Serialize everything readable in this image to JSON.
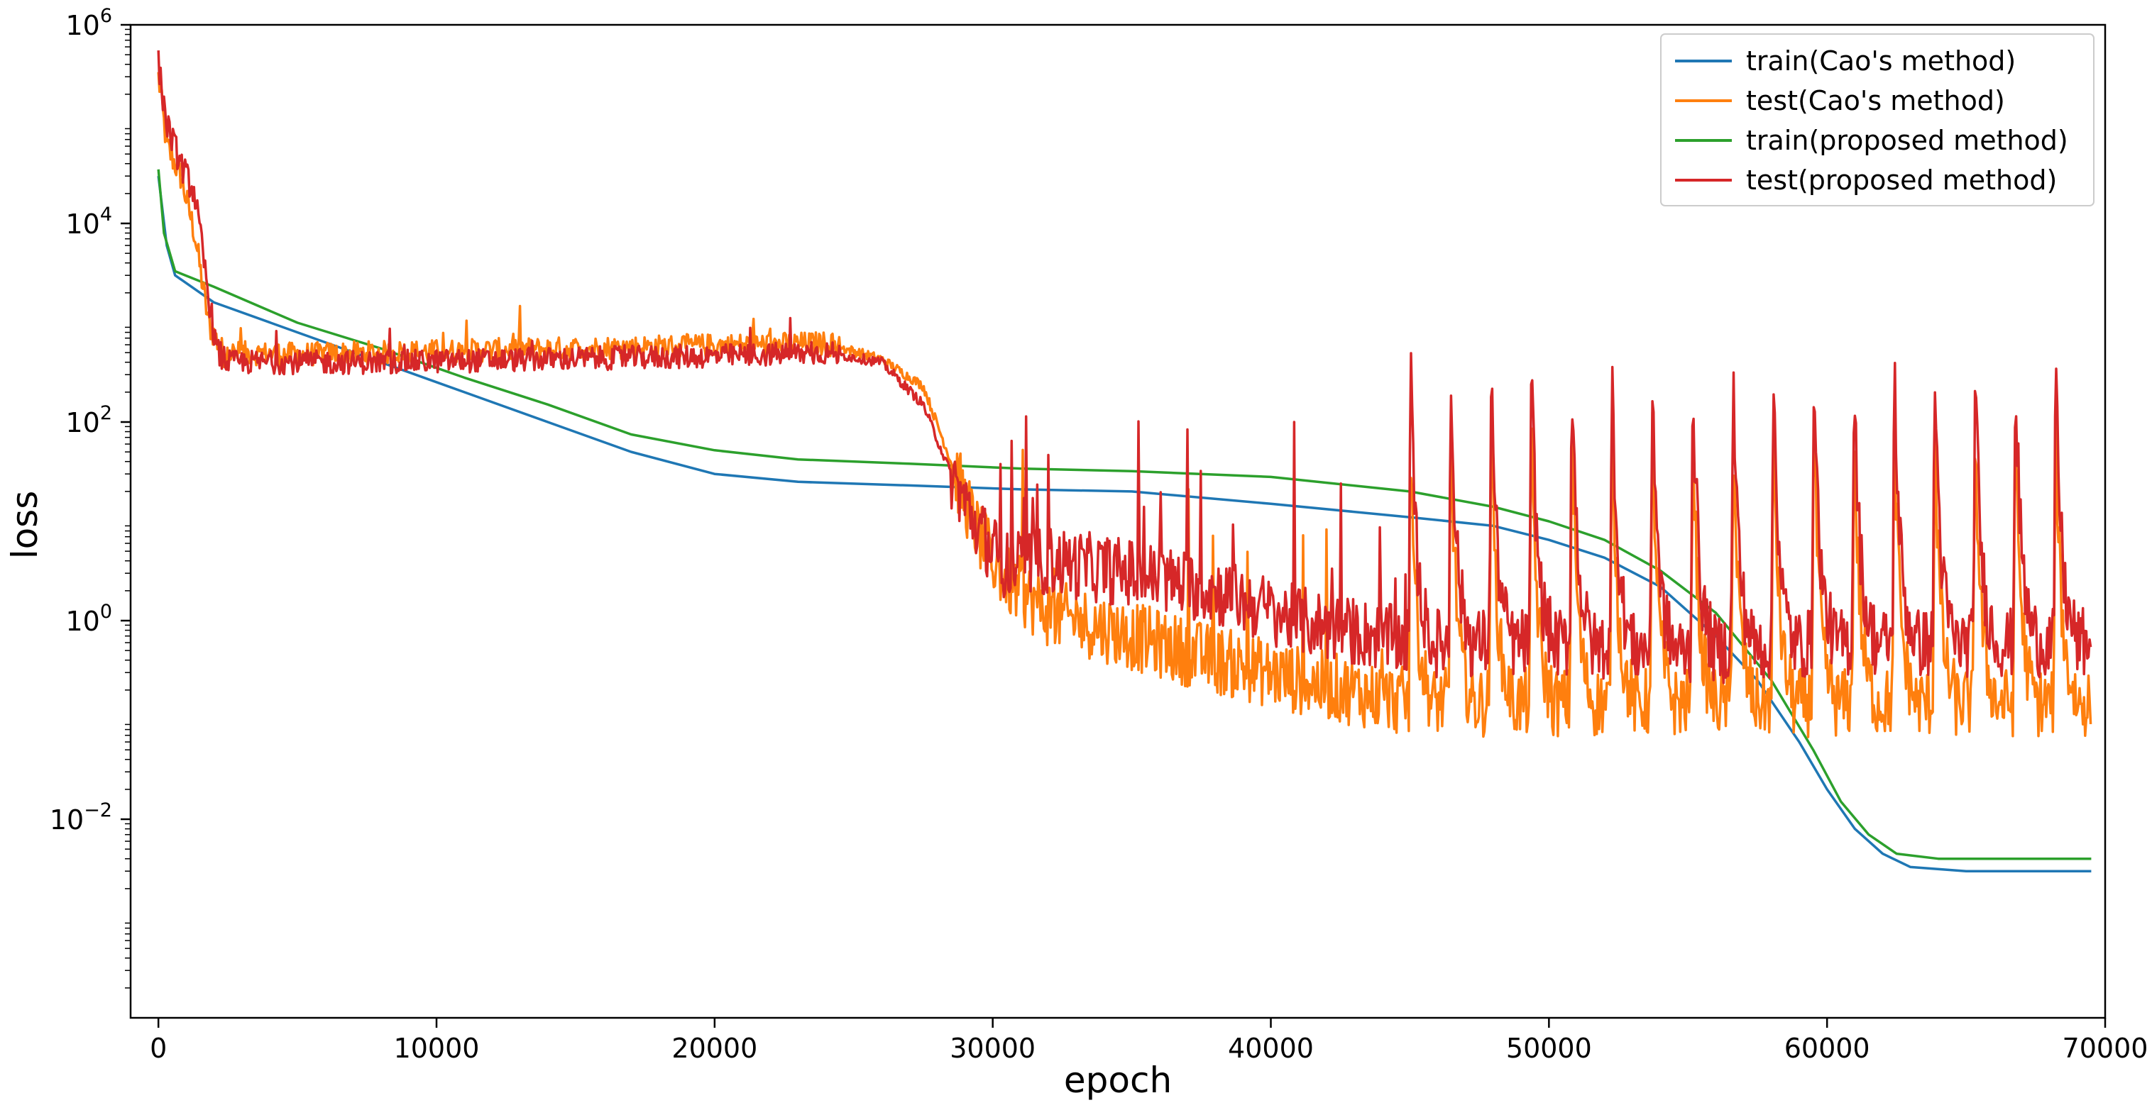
{
  "chart_data": {
    "type": "line",
    "title": "",
    "xlabel": "epoch",
    "ylabel": "loss",
    "xscale": "linear",
    "yscale": "log",
    "xlim": [
      -1000,
      70000
    ],
    "ylim_exp": [
      -4,
      6
    ],
    "xticks": [
      0,
      10000,
      20000,
      30000,
      40000,
      50000,
      60000,
      70000
    ],
    "xtick_labels": [
      "0",
      "10000",
      "20000",
      "30000",
      "40000",
      "50000",
      "60000",
      "70000"
    ],
    "yticks_exp": [
      -2,
      0,
      2,
      4,
      6
    ],
    "ytick_labels": [
      {
        "base": "10",
        "exp": "−2"
      },
      {
        "base": "10",
        "exp": "0"
      },
      {
        "base": "10",
        "exp": "2"
      },
      {
        "base": "10",
        "exp": "4"
      },
      {
        "base": "10",
        "exp": "6"
      }
    ],
    "legend_position": "top-right",
    "series": [
      {
        "name": "train(Cao's method)",
        "color": "#1f77b4",
        "kind": "smooth",
        "points": [
          [
            0,
            30000
          ],
          [
            300,
            6000
          ],
          [
            600,
            3000
          ],
          [
            2000,
            1600
          ],
          [
            5000,
            800
          ],
          [
            8000,
            400
          ],
          [
            11000,
            200
          ],
          [
            14000,
            100
          ],
          [
            17000,
            50
          ],
          [
            20000,
            30
          ],
          [
            23000,
            25
          ],
          [
            27000,
            23
          ],
          [
            31000,
            21
          ],
          [
            35000,
            20
          ],
          [
            40000,
            15
          ],
          [
            45000,
            11
          ],
          [
            48000,
            9
          ],
          [
            50000,
            6.5
          ],
          [
            52000,
            4.3
          ],
          [
            54000,
            2.2
          ],
          [
            56000,
            0.7
          ],
          [
            57500,
            0.25
          ],
          [
            59000,
            0.06
          ],
          [
            60000,
            0.02
          ],
          [
            61000,
            0.008
          ],
          [
            62000,
            0.0045
          ],
          [
            63000,
            0.0033
          ],
          [
            65000,
            0.003
          ],
          [
            69500,
            0.003
          ]
        ]
      },
      {
        "name": "test(Cao's method)",
        "color": "#ff7f0e",
        "kind": "noisy",
        "points": [
          [
            0,
            300000
          ],
          [
            300,
            60000
          ],
          [
            800,
            30000
          ],
          [
            1300,
            8000
          ],
          [
            1800,
            1000
          ],
          [
            2300,
            500
          ],
          [
            5000,
            480
          ],
          [
            8000,
            500
          ],
          [
            12000,
            530
          ],
          [
            16000,
            560
          ],
          [
            20000,
            590
          ],
          [
            24000,
            620
          ],
          [
            26000,
            430
          ],
          [
            27500,
            230
          ],
          [
            28500,
            40
          ],
          [
            29500,
            7
          ],
          [
            30500,
            2.5
          ],
          [
            32000,
            1.2
          ],
          [
            35000,
            0.7
          ],
          [
            38000,
            0.4
          ],
          [
            41000,
            0.25
          ],
          [
            45000,
            0.15
          ],
          [
            50000,
            0.15
          ],
          [
            55000,
            0.15
          ],
          [
            60000,
            0.15
          ],
          [
            65000,
            0.15
          ],
          [
            69500,
            0.15
          ]
        ]
      },
      {
        "name": "train(proposed method)",
        "color": "#2ca02c",
        "kind": "smooth",
        "points": [
          [
            0,
            35000
          ],
          [
            200,
            8000
          ],
          [
            600,
            3300
          ],
          [
            2000,
            2300
          ],
          [
            5000,
            1000
          ],
          [
            8000,
            550
          ],
          [
            11000,
            280
          ],
          [
            14000,
            150
          ],
          [
            17000,
            75
          ],
          [
            20000,
            52
          ],
          [
            23000,
            42
          ],
          [
            27000,
            38
          ],
          [
            31000,
            34
          ],
          [
            35000,
            32
          ],
          [
            40000,
            28
          ],
          [
            45000,
            20
          ],
          [
            48000,
            14
          ],
          [
            50000,
            10
          ],
          [
            52000,
            6.5
          ],
          [
            54000,
            3.2
          ],
          [
            56000,
            1.2
          ],
          [
            58000,
            0.25
          ],
          [
            59500,
            0.05
          ],
          [
            60500,
            0.015
          ],
          [
            61500,
            0.007
          ],
          [
            62500,
            0.0045
          ],
          [
            64000,
            0.004
          ],
          [
            69500,
            0.004
          ]
        ]
      },
      {
        "name": "test(proposed method)",
        "color": "#d62728",
        "kind": "noisy",
        "points": [
          [
            0,
            400000
          ],
          [
            300,
            100000
          ],
          [
            800,
            40000
          ],
          [
            1300,
            20000
          ],
          [
            1700,
            3000
          ],
          [
            2100,
            500
          ],
          [
            2500,
            400
          ],
          [
            8000,
            400
          ],
          [
            12000,
            420
          ],
          [
            16000,
            440
          ],
          [
            20000,
            460
          ],
          [
            24000,
            500
          ],
          [
            26000,
            400
          ],
          [
            27500,
            150
          ],
          [
            28500,
            30
          ],
          [
            29500,
            8
          ],
          [
            30500,
            3.5
          ],
          [
            32000,
            4
          ],
          [
            35000,
            3
          ],
          [
            38000,
            2
          ],
          [
            41000,
            1
          ],
          [
            45000,
            0.6
          ],
          [
            50000,
            0.6
          ],
          [
            55000,
            0.5
          ],
          [
            60000,
            0.6
          ],
          [
            65000,
            0.6
          ],
          [
            69500,
            0.6
          ]
        ]
      }
    ]
  }
}
